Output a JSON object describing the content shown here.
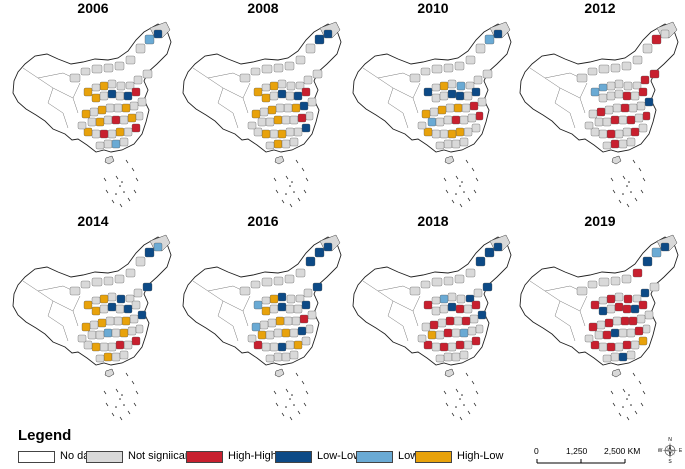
{
  "panels": [
    {
      "year": "2006"
    },
    {
      "year": "2008"
    },
    {
      "year": "2010"
    },
    {
      "year": "2012"
    },
    {
      "year": "2014"
    },
    {
      "year": "2016"
    },
    {
      "year": "2018"
    },
    {
      "year": "2019"
    }
  ],
  "legend": {
    "title": "Legend",
    "items": [
      {
        "label": "No data",
        "color": "#ffffff"
      },
      {
        "label": "Not signiicantf",
        "color": "#d9d9d9"
      },
      {
        "label": "High-High",
        "color": "#c8202f"
      },
      {
        "label": "Low-Low",
        "color": "#0d4a86"
      },
      {
        "label": "Low-High",
        "color": "#6aaad4"
      },
      {
        "label": "High-Low",
        "color": "#e8a20b"
      }
    ]
  },
  "scale": {
    "labels": [
      "0",
      "1,250",
      "2,500 KM"
    ]
  },
  "compass": {
    "letters": [
      "N",
      "E",
      "S",
      "W"
    ],
    "icon": "compass-rose-icon"
  }
}
